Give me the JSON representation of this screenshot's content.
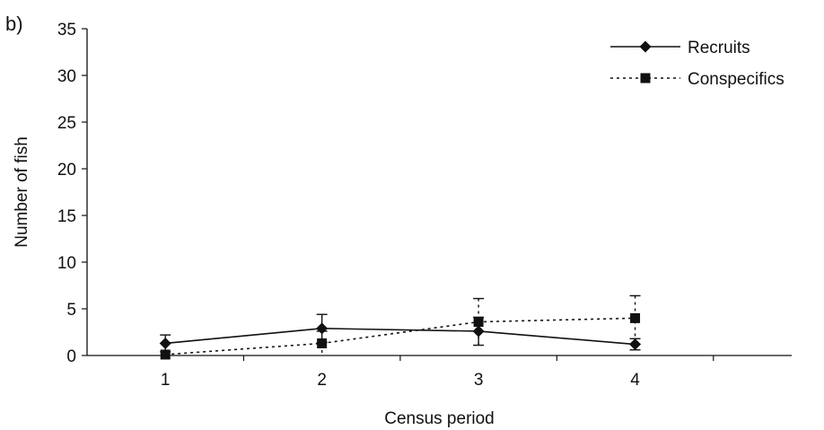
{
  "panel_label": "b)",
  "chart_data": {
    "type": "line",
    "title": "",
    "xlabel": "Census period",
    "ylabel": "Number of fish",
    "categories": [
      "1",
      "2",
      "3",
      "4"
    ],
    "ylim": [
      0,
      35
    ],
    "yticks": [
      "0",
      "5",
      "10",
      "15",
      "20",
      "25",
      "30",
      "35"
    ],
    "grid": false,
    "legend_position": "top-right",
    "series": [
      {
        "name": "Recruits",
        "marker": "diamond",
        "line_style": "solid",
        "color": "#111111",
        "values": [
          1.3,
          2.9,
          2.6,
          1.2
        ],
        "error": [
          0.9,
          1.5,
          1.5,
          0.6
        ]
      },
      {
        "name": "Conspecifics",
        "marker": "square",
        "line_style": "dotted",
        "color": "#111111",
        "values": [
          0.1,
          1.3,
          3.6,
          4.0
        ],
        "error": [
          0.0,
          1.3,
          2.5,
          2.4
        ]
      }
    ]
  }
}
